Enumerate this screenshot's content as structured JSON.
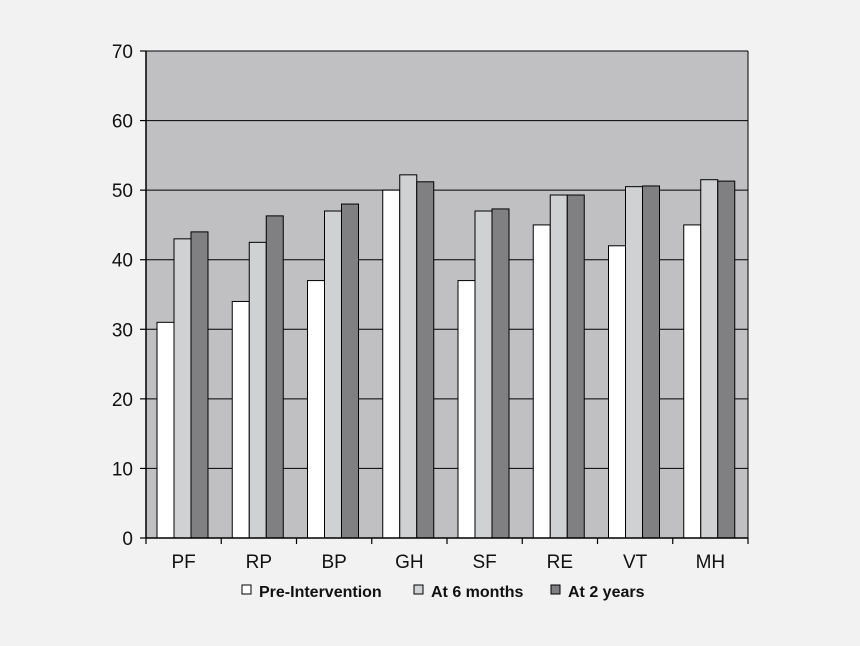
{
  "chart_data": {
    "type": "bar",
    "categories": [
      "PF",
      "RP",
      "BP",
      "GH",
      "SF",
      "RE",
      "VT",
      "MH"
    ],
    "series": [
      {
        "name": "Pre-Intervention",
        "color": "#ffffff",
        "values": [
          31,
          34,
          37,
          50,
          37,
          45,
          42,
          45
        ]
      },
      {
        "name": "At 6 months",
        "color": "#d0d1d3",
        "values": [
          43,
          42.5,
          47,
          52.2,
          47,
          49.3,
          50.5,
          51.5
        ]
      },
      {
        "name": "At 2 years",
        "color": "#808083",
        "values": [
          44,
          46.3,
          48,
          51.2,
          47.3,
          49.3,
          50.6,
          51.3
        ]
      }
    ],
    "ylim": [
      0,
      70
    ],
    "yticks": [
      0,
      10,
      20,
      30,
      40,
      50,
      60,
      70
    ],
    "grid": true,
    "legend": "bottom",
    "plot_background": "#c0c0c2",
    "page_background": "#f2f2f2"
  }
}
